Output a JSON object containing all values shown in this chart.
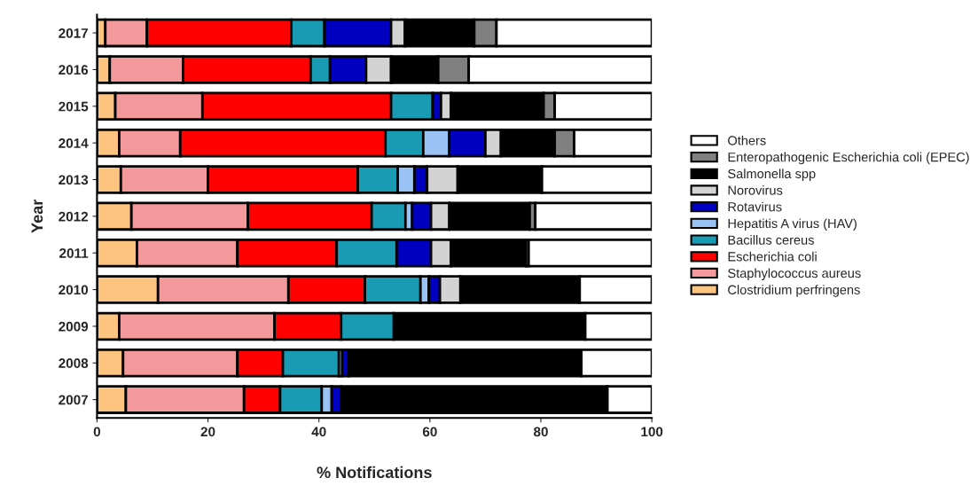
{
  "chart_data": {
    "type": "bar",
    "orientation": "horizontal",
    "stacked": true,
    "xlabel": "% Notifications",
    "ylabel": "Year",
    "categories": [
      "2017",
      "2016",
      "2015",
      "2014",
      "2013",
      "2012",
      "2011",
      "2010",
      "2009",
      "2008",
      "2007"
    ],
    "xlim": [
      0,
      100
    ],
    "xticks": [
      0,
      20,
      40,
      60,
      80,
      100
    ],
    "grid": false,
    "legend": "right",
    "series": [
      {
        "name": "Clostridium perfringens",
        "color": "#fdc47f",
        "values": [
          1.5,
          2.3,
          3.3,
          4,
          4.3,
          6.2,
          7.2,
          11,
          4,
          4.7,
          5.2
        ]
      },
      {
        "name": "Staphylococcus aureus",
        "color": "#f4999b",
        "values": [
          7.5,
          13.2,
          15.7,
          11,
          15.7,
          21,
          18.1,
          23.5,
          28,
          20.6,
          21.3
        ]
      },
      {
        "name": "Escherichia coli",
        "color": "#ff0000",
        "values": [
          26,
          23,
          34,
          37,
          27,
          22.3,
          17.9,
          13.8,
          12,
          8.2,
          6.5
        ]
      },
      {
        "name": "Bacillus cereus",
        "color": "#1a9bb4",
        "values": [
          6,
          3.5,
          7.5,
          6.8,
          7.2,
          6.1,
          10.8,
          10,
          9.5,
          10.1,
          7.5
        ]
      },
      {
        "name": "Hepatitis A virus (HAV)",
        "color": "#99c3f4",
        "values": [
          0,
          0,
          0,
          4.7,
          3,
          1.2,
          0,
          1.5,
          0,
          0.6,
          1.8
        ]
      },
      {
        "name": "Rotavirus",
        "color": "#0000c0",
        "values": [
          12,
          6.5,
          1.5,
          6.5,
          2.3,
          3.4,
          6.2,
          2,
          0,
          1.1,
          1.7
        ]
      },
      {
        "name": "Norovirus",
        "color": "#d3d3d3",
        "values": [
          2.5,
          4.5,
          1.8,
          2.8,
          5.5,
          3.3,
          3.6,
          3.7,
          0,
          0,
          0
        ]
      },
      {
        "name": "Salmonella spp",
        "color": "#000000",
        "values": [
          12.5,
          8.5,
          16.7,
          9.7,
          15.2,
          14.5,
          13.5,
          21.5,
          34.5,
          42,
          48
        ]
      },
      {
        "name": "Enteropathogenic Escherichia coli (EPEC)",
        "color": "#808080",
        "values": [
          4,
          5.5,
          2,
          3.5,
          0,
          1,
          0.5,
          0,
          0,
          0,
          0
        ]
      },
      {
        "name": "Others",
        "color": "#ffffff",
        "values": [
          28,
          33,
          17.5,
          14,
          19.8,
          21,
          22.2,
          13,
          12,
          12.7,
          8
        ]
      }
    ]
  }
}
